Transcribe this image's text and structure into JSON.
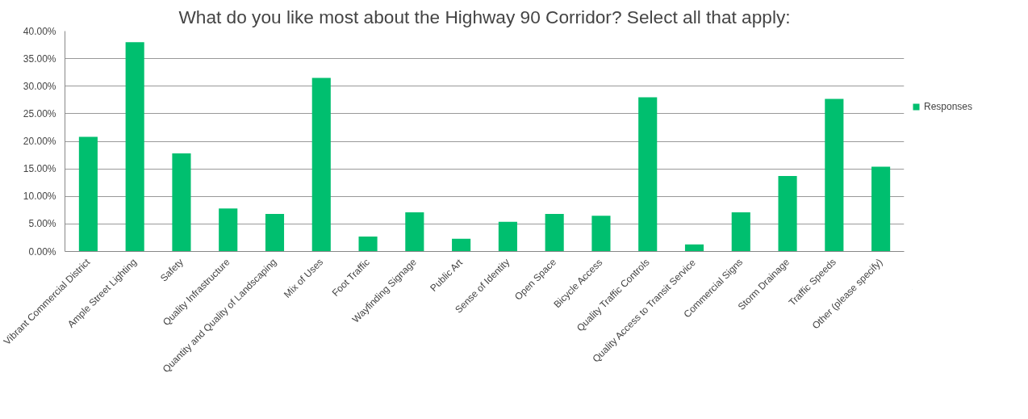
{
  "chart_data": {
    "type": "bar",
    "title": "What do you like most about the Highway 90 Corridor? Select all that apply:",
    "categories": [
      "Vibrant Commercial District",
      "Ample Street Lighting",
      "Safety",
      "Quality Infrastructure",
      "Quantity and Quality of Landscaping",
      "Mix of Uses",
      "Foot Traffic",
      "Wayfinding Signage",
      "Public Art",
      "Sense of Identity",
      "Open Space",
      "Bicycle Access",
      "Quality Traffic Controls",
      "Quality Access to Transit Service",
      "Commercial Signs",
      "Storm Drainage",
      "Traffic Speeds",
      "Other (please specify)"
    ],
    "series": [
      {
        "name": "Responses",
        "color": "#00bf6f",
        "values": [
          20.8,
          38.0,
          17.8,
          7.8,
          6.8,
          31.5,
          2.7,
          7.1,
          2.3,
          5.4,
          6.8,
          6.5,
          28.0,
          1.3,
          7.1,
          13.7,
          27.7,
          15.4
        ]
      }
    ],
    "ylim": [
      0,
      40
    ],
    "yticks": [
      {
        "value": 0,
        "label": "0.00%"
      },
      {
        "value": 5,
        "label": "5.00%"
      },
      {
        "value": 10,
        "label": "10.00%"
      },
      {
        "value": 15,
        "label": "15.00%"
      },
      {
        "value": 20,
        "label": "20.00%"
      },
      {
        "value": 25,
        "label": "25.00%"
      },
      {
        "value": 30,
        "label": "30.00%"
      },
      {
        "value": 35,
        "label": "35.00%"
      },
      {
        "value": 40,
        "label": "40.00%"
      }
    ],
    "grid": "y",
    "legend": "right"
  }
}
